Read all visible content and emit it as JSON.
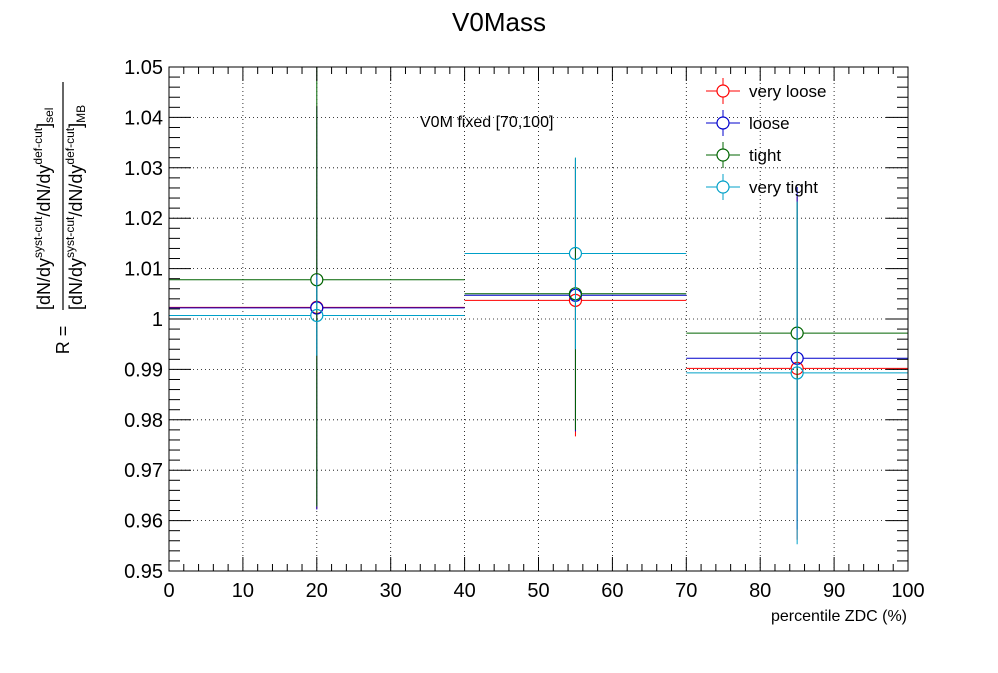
{
  "chart_data": {
    "type": "scatter",
    "title": "V0Mass",
    "xlabel": "percentile ZDC (%)",
    "ylabel": {
      "prefix": "R =",
      "numerator": {
        "base": "[dN/dy",
        "sup1": "syst-cut",
        "mid": "/dN/dy",
        "sup2": "def-cut",
        "close": "]",
        "sub": "sel"
      },
      "denominator": {
        "base": "[dN/dy",
        "sup1": "syst-cut",
        "mid": "/dN/dy",
        "sup2": "def-cut",
        "close": "]",
        "sub": "MB"
      }
    },
    "annotation": "V0M fixed [70,100]",
    "xlim": [
      0,
      100
    ],
    "ylim": [
      0.95,
      1.05
    ],
    "xticks": [
      "0",
      "10",
      "20",
      "30",
      "40",
      "50",
      "60",
      "70",
      "80",
      "90",
      "100"
    ],
    "yticks": [
      "0.95",
      "0.96",
      "0.97",
      "0.98",
      "0.99",
      "1",
      "1.01",
      "1.02",
      "1.03",
      "1.04",
      "1.05"
    ],
    "grid": true,
    "legend_position": "top-right",
    "bins": [
      {
        "x": 20,
        "xlow": 0,
        "xhigh": 40
      },
      {
        "x": 55,
        "xlow": 40,
        "xhigh": 70
      },
      {
        "x": 85,
        "xlow": 70,
        "xhigh": 100
      }
    ],
    "series": [
      {
        "name": "very loose",
        "color": "#ff0000",
        "values": [
          1.0023,
          1.0037,
          0.9902
        ],
        "errors": [
          0.04,
          0.027,
          0.034
        ]
      },
      {
        "name": "loose",
        "color": "#0000cc",
        "values": [
          1.0022,
          1.0047,
          0.9922
        ],
        "errors": [
          0.04,
          0.027,
          0.034
        ]
      },
      {
        "name": "tight",
        "color": "#006400",
        "values": [
          1.0078,
          1.005,
          0.9972
        ],
        "errors": [
          0.045,
          0.027,
          0.026
        ]
      },
      {
        "name": "very tight",
        "color": "#00a0c8",
        "values": [
          1.0007,
          1.013,
          0.9893
        ],
        "errors": [
          0.008,
          0.019,
          0.034
        ]
      }
    ]
  }
}
